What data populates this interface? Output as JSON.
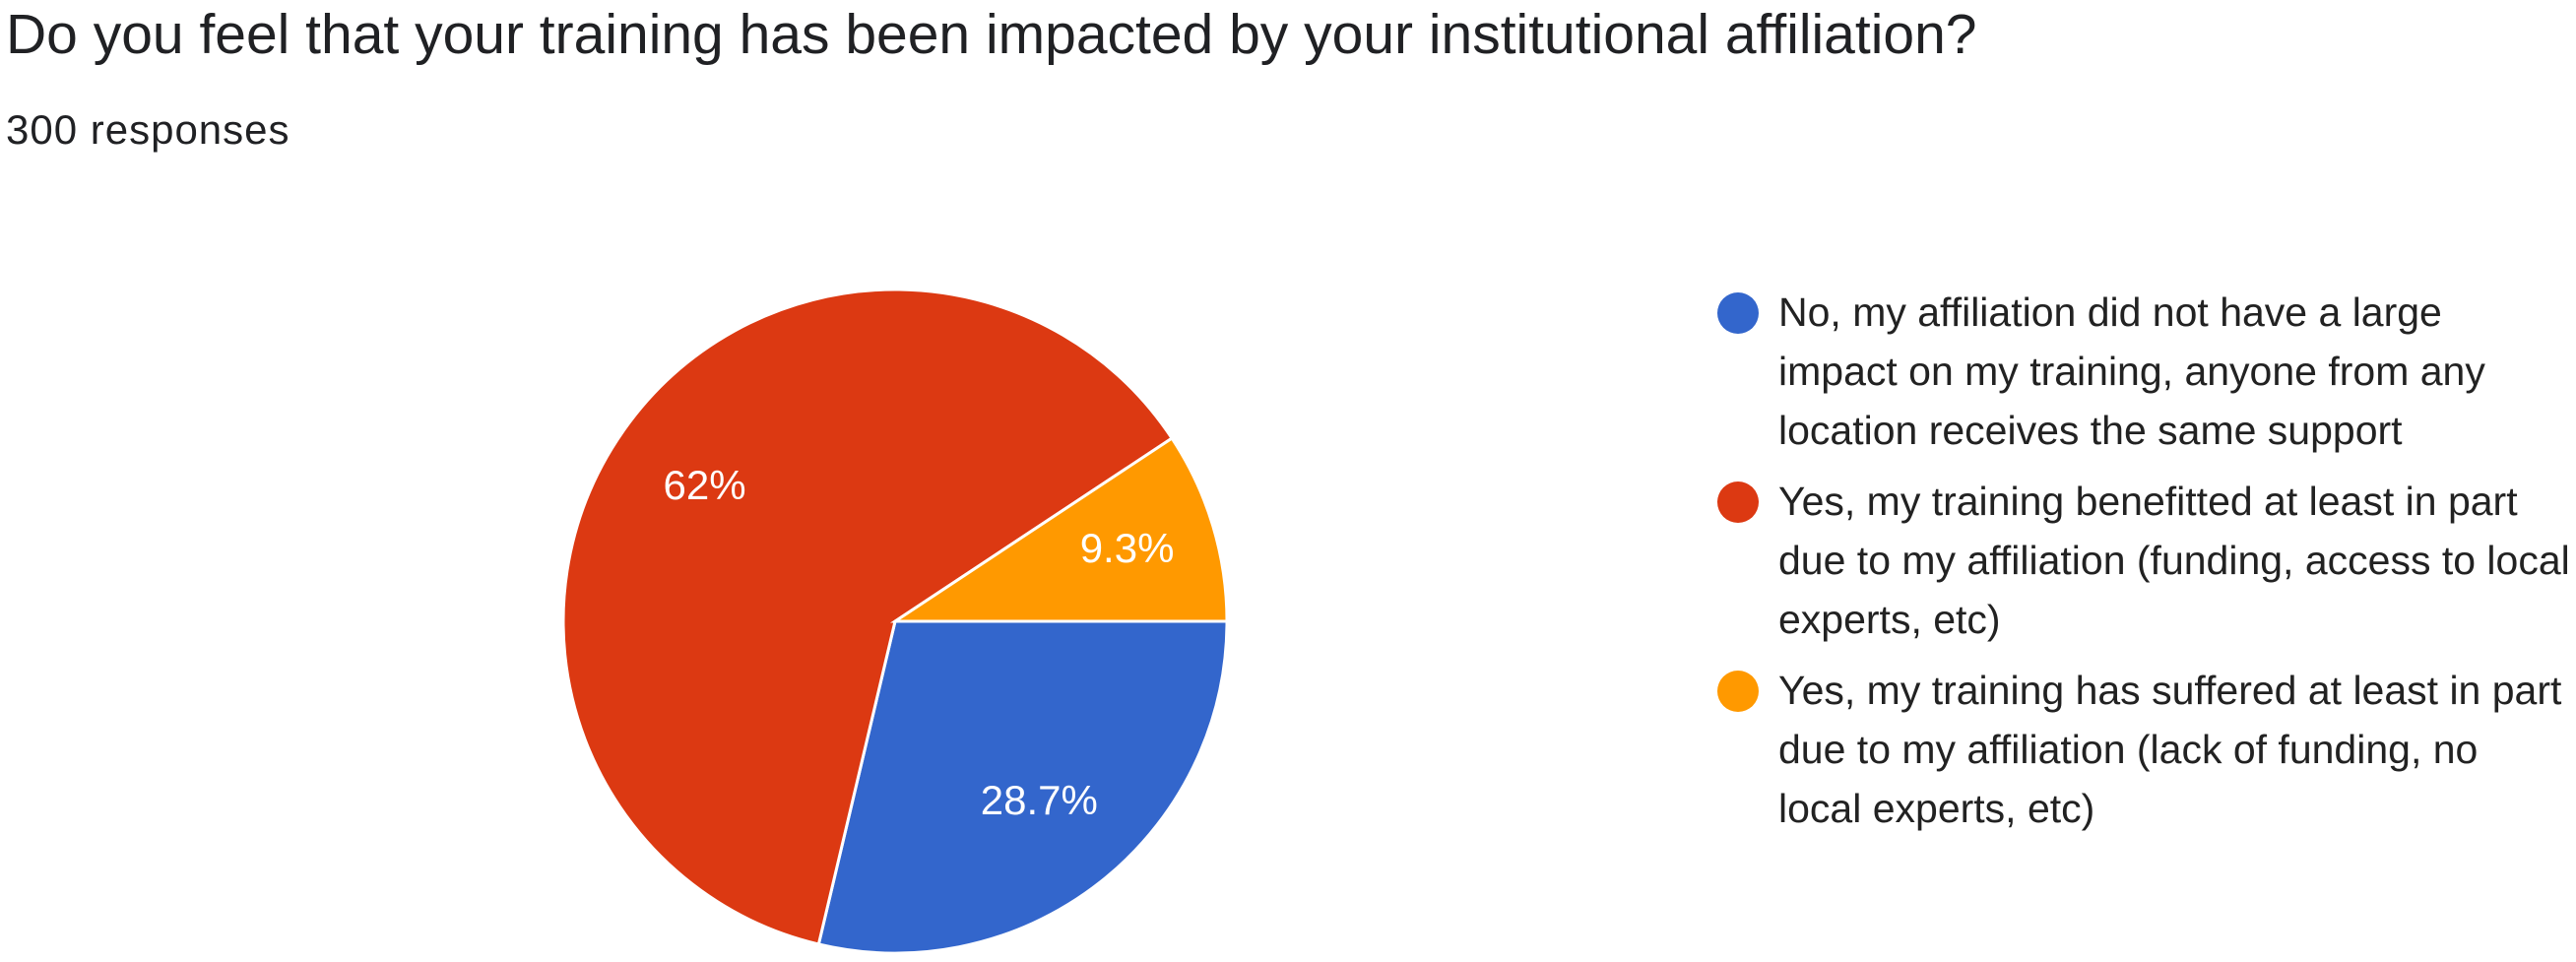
{
  "chart_data": {
    "type": "pie",
    "title": "Do you feel that your training has been impacted by your institutional affiliation?",
    "subtitle": "300 responses",
    "categories": [
      "No, my affiliation did not have a large impact on my training, anyone from any location receives the same support",
      "Yes, my training benefitted at least in part due to my affiliation (funding, access to local experts, etc)",
      "Yes, my training has suffered at least in part due to my affiliation (lack of funding, no local experts, etc)"
    ],
    "values": [
      28.7,
      62,
      9.3
    ],
    "value_labels": [
      "28.7%",
      "62%",
      "9.3%"
    ],
    "colors": [
      "#3366cc",
      "#dc3912",
      "#ff9900"
    ]
  }
}
